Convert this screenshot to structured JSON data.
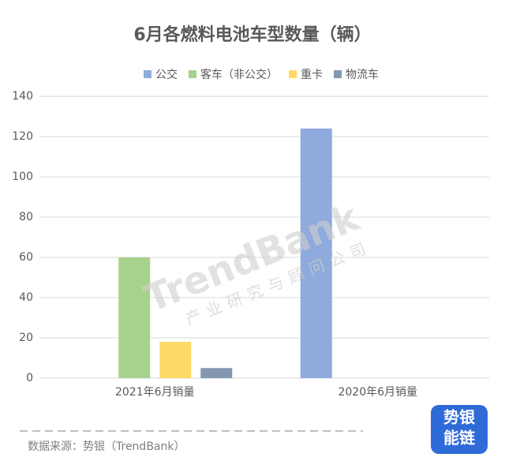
{
  "chart_data": {
    "type": "bar",
    "title": "6月各燃料电池车型数量（辆）",
    "categories": [
      "2021年6月销量",
      "2020年6月销量"
    ],
    "series": [
      {
        "name": "公交",
        "color": "#8faadc",
        "values": [
          0,
          124
        ]
      },
      {
        "name": "客车（非公交）",
        "color": "#a9d18e",
        "values": [
          60,
          0
        ]
      },
      {
        "name": "重卡",
        "color": "#ffd966",
        "values": [
          18,
          0
        ]
      },
      {
        "name": "物流车",
        "color": "#8497b0",
        "values": [
          5,
          0
        ]
      }
    ],
    "ylim": [
      0,
      140
    ],
    "yticks": [
      0,
      20,
      40,
      60,
      80,
      100,
      120,
      140
    ],
    "grid": true,
    "legend": "top",
    "watermark": {
      "main": "TrendBank",
      "sub": "产业研究与顾问公司"
    },
    "source": "数据来源：势银（TrendBank）",
    "logo": [
      "势银",
      "能链"
    ]
  }
}
